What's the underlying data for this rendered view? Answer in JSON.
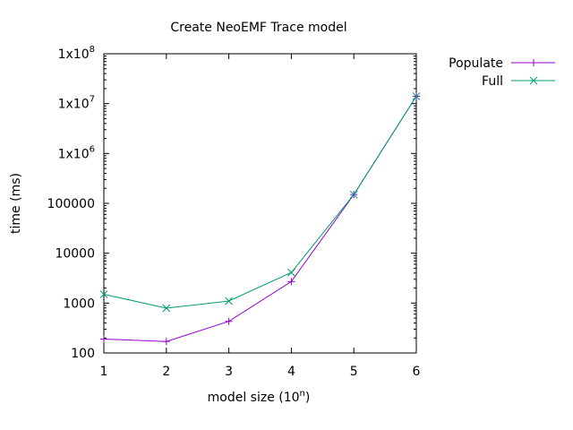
{
  "chart_data": {
    "type": "line",
    "title": "Create NeoEMF Trace model",
    "xlabel": "model size (10",
    "xlabel_sup": "n",
    "xlabel_suffix": ")",
    "ylabel": "time (ms)",
    "x": [
      1,
      2,
      3,
      4,
      5,
      6
    ],
    "xlim": [
      1,
      6
    ],
    "ylim": [
      100,
      100000000
    ],
    "yscale": "log",
    "grid": false,
    "legend": "top-right",
    "x_ticks": [
      "1",
      "2",
      "3",
      "4",
      "5",
      "6"
    ],
    "y_ticks": [
      {
        "value": 100,
        "label": "100"
      },
      {
        "value": 1000,
        "label": "1000"
      },
      {
        "value": 10000,
        "label": "10000"
      },
      {
        "value": 100000,
        "label": "100000"
      },
      {
        "value": 1000000,
        "base": "1x10",
        "exp": "6"
      },
      {
        "value": 10000000,
        "base": "1x10",
        "exp": "7"
      },
      {
        "value": 100000000,
        "base": "1x10",
        "exp": "8"
      }
    ],
    "series": [
      {
        "name": "Populate",
        "color": "#9400d3",
        "marker": "plus",
        "values": [
          190,
          170,
          430,
          2700,
          150000,
          14000000
        ]
      },
      {
        "name": "Full",
        "color": "#009e73",
        "marker": "cross",
        "values": [
          1500,
          790,
          1100,
          4100,
          150000,
          14000000
        ]
      }
    ]
  }
}
